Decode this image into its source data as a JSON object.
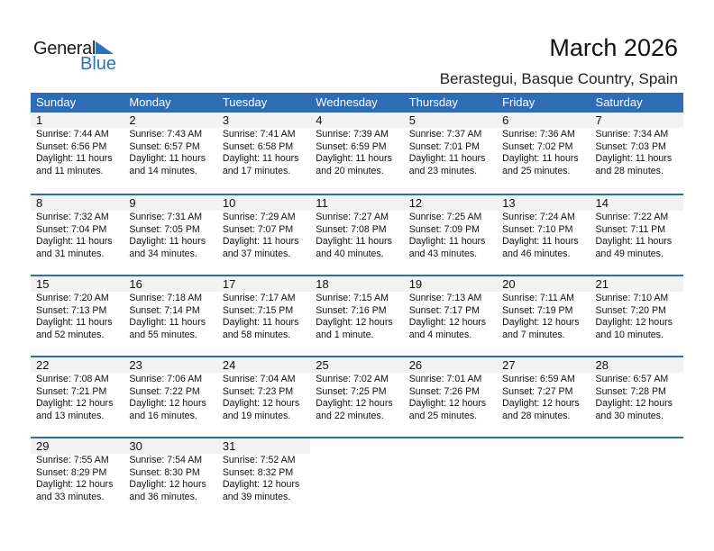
{
  "logo": {
    "text_top": "General",
    "text_bottom": "Blue",
    "accent": "#2a74bb"
  },
  "title": "March 2026",
  "location": "Berastegui, Basque Country, Spain",
  "header_color": "#2e6db4",
  "days": [
    "Sunday",
    "Monday",
    "Tuesday",
    "Wednesday",
    "Thursday",
    "Friday",
    "Saturday"
  ],
  "weeks": [
    [
      {
        "day": "1",
        "sunrise": "Sunrise: 7:44 AM",
        "sunset": "Sunset: 6:56 PM",
        "daylight": "Daylight: 11 hours",
        "minutes": "and 11 minutes."
      },
      {
        "day": "2",
        "sunrise": "Sunrise: 7:43 AM",
        "sunset": "Sunset: 6:57 PM",
        "daylight": "Daylight: 11 hours",
        "minutes": "and 14 minutes."
      },
      {
        "day": "3",
        "sunrise": "Sunrise: 7:41 AM",
        "sunset": "Sunset: 6:58 PM",
        "daylight": "Daylight: 11 hours",
        "minutes": "and 17 minutes."
      },
      {
        "day": "4",
        "sunrise": "Sunrise: 7:39 AM",
        "sunset": "Sunset: 6:59 PM",
        "daylight": "Daylight: 11 hours",
        "minutes": "and 20 minutes."
      },
      {
        "day": "5",
        "sunrise": "Sunrise: 7:37 AM",
        "sunset": "Sunset: 7:01 PM",
        "daylight": "Daylight: 11 hours",
        "minutes": "and 23 minutes."
      },
      {
        "day": "6",
        "sunrise": "Sunrise: 7:36 AM",
        "sunset": "Sunset: 7:02 PM",
        "daylight": "Daylight: 11 hours",
        "minutes": "and 25 minutes."
      },
      {
        "day": "7",
        "sunrise": "Sunrise: 7:34 AM",
        "sunset": "Sunset: 7:03 PM",
        "daylight": "Daylight: 11 hours",
        "minutes": "and 28 minutes."
      }
    ],
    [
      {
        "day": "8",
        "sunrise": "Sunrise: 7:32 AM",
        "sunset": "Sunset: 7:04 PM",
        "daylight": "Daylight: 11 hours",
        "minutes": "and 31 minutes."
      },
      {
        "day": "9",
        "sunrise": "Sunrise: 7:31 AM",
        "sunset": "Sunset: 7:05 PM",
        "daylight": "Daylight: 11 hours",
        "minutes": "and 34 minutes."
      },
      {
        "day": "10",
        "sunrise": "Sunrise: 7:29 AM",
        "sunset": "Sunset: 7:07 PM",
        "daylight": "Daylight: 11 hours",
        "minutes": "and 37 minutes."
      },
      {
        "day": "11",
        "sunrise": "Sunrise: 7:27 AM",
        "sunset": "Sunset: 7:08 PM",
        "daylight": "Daylight: 11 hours",
        "minutes": "and 40 minutes."
      },
      {
        "day": "12",
        "sunrise": "Sunrise: 7:25 AM",
        "sunset": "Sunset: 7:09 PM",
        "daylight": "Daylight: 11 hours",
        "minutes": "and 43 minutes."
      },
      {
        "day": "13",
        "sunrise": "Sunrise: 7:24 AM",
        "sunset": "Sunset: 7:10 PM",
        "daylight": "Daylight: 11 hours",
        "minutes": "and 46 minutes."
      },
      {
        "day": "14",
        "sunrise": "Sunrise: 7:22 AM",
        "sunset": "Sunset: 7:11 PM",
        "daylight": "Daylight: 11 hours",
        "minutes": "and 49 minutes."
      }
    ],
    [
      {
        "day": "15",
        "sunrise": "Sunrise: 7:20 AM",
        "sunset": "Sunset: 7:13 PM",
        "daylight": "Daylight: 11 hours",
        "minutes": "and 52 minutes."
      },
      {
        "day": "16",
        "sunrise": "Sunrise: 7:18 AM",
        "sunset": "Sunset: 7:14 PM",
        "daylight": "Daylight: 11 hours",
        "minutes": "and 55 minutes."
      },
      {
        "day": "17",
        "sunrise": "Sunrise: 7:17 AM",
        "sunset": "Sunset: 7:15 PM",
        "daylight": "Daylight: 11 hours",
        "minutes": "and 58 minutes."
      },
      {
        "day": "18",
        "sunrise": "Sunrise: 7:15 AM",
        "sunset": "Sunset: 7:16 PM",
        "daylight": "Daylight: 12 hours",
        "minutes": "and 1 minute."
      },
      {
        "day": "19",
        "sunrise": "Sunrise: 7:13 AM",
        "sunset": "Sunset: 7:17 PM",
        "daylight": "Daylight: 12 hours",
        "minutes": "and 4 minutes."
      },
      {
        "day": "20",
        "sunrise": "Sunrise: 7:11 AM",
        "sunset": "Sunset: 7:19 PM",
        "daylight": "Daylight: 12 hours",
        "minutes": "and 7 minutes."
      },
      {
        "day": "21",
        "sunrise": "Sunrise: 7:10 AM",
        "sunset": "Sunset: 7:20 PM",
        "daylight": "Daylight: 12 hours",
        "minutes": "and 10 minutes."
      }
    ],
    [
      {
        "day": "22",
        "sunrise": "Sunrise: 7:08 AM",
        "sunset": "Sunset: 7:21 PM",
        "daylight": "Daylight: 12 hours",
        "minutes": "and 13 minutes."
      },
      {
        "day": "23",
        "sunrise": "Sunrise: 7:06 AM",
        "sunset": "Sunset: 7:22 PM",
        "daylight": "Daylight: 12 hours",
        "minutes": "and 16 minutes."
      },
      {
        "day": "24",
        "sunrise": "Sunrise: 7:04 AM",
        "sunset": "Sunset: 7:23 PM",
        "daylight": "Daylight: 12 hours",
        "minutes": "and 19 minutes."
      },
      {
        "day": "25",
        "sunrise": "Sunrise: 7:02 AM",
        "sunset": "Sunset: 7:25 PM",
        "daylight": "Daylight: 12 hours",
        "minutes": "and 22 minutes."
      },
      {
        "day": "26",
        "sunrise": "Sunrise: 7:01 AM",
        "sunset": "Sunset: 7:26 PM",
        "daylight": "Daylight: 12 hours",
        "minutes": "and 25 minutes."
      },
      {
        "day": "27",
        "sunrise": "Sunrise: 6:59 AM",
        "sunset": "Sunset: 7:27 PM",
        "daylight": "Daylight: 12 hours",
        "minutes": "and 28 minutes."
      },
      {
        "day": "28",
        "sunrise": "Sunrise: 6:57 AM",
        "sunset": "Sunset: 7:28 PM",
        "daylight": "Daylight: 12 hours",
        "minutes": "and 30 minutes."
      }
    ],
    [
      {
        "day": "29",
        "sunrise": "Sunrise: 7:55 AM",
        "sunset": "Sunset: 8:29 PM",
        "daylight": "Daylight: 12 hours",
        "minutes": "and 33 minutes."
      },
      {
        "day": "30",
        "sunrise": "Sunrise: 7:54 AM",
        "sunset": "Sunset: 8:30 PM",
        "daylight": "Daylight: 12 hours",
        "minutes": "and 36 minutes."
      },
      {
        "day": "31",
        "sunrise": "Sunrise: 7:52 AM",
        "sunset": "Sunset: 8:32 PM",
        "daylight": "Daylight: 12 hours",
        "minutes": "and 39 minutes."
      },
      null,
      null,
      null,
      null
    ]
  ]
}
